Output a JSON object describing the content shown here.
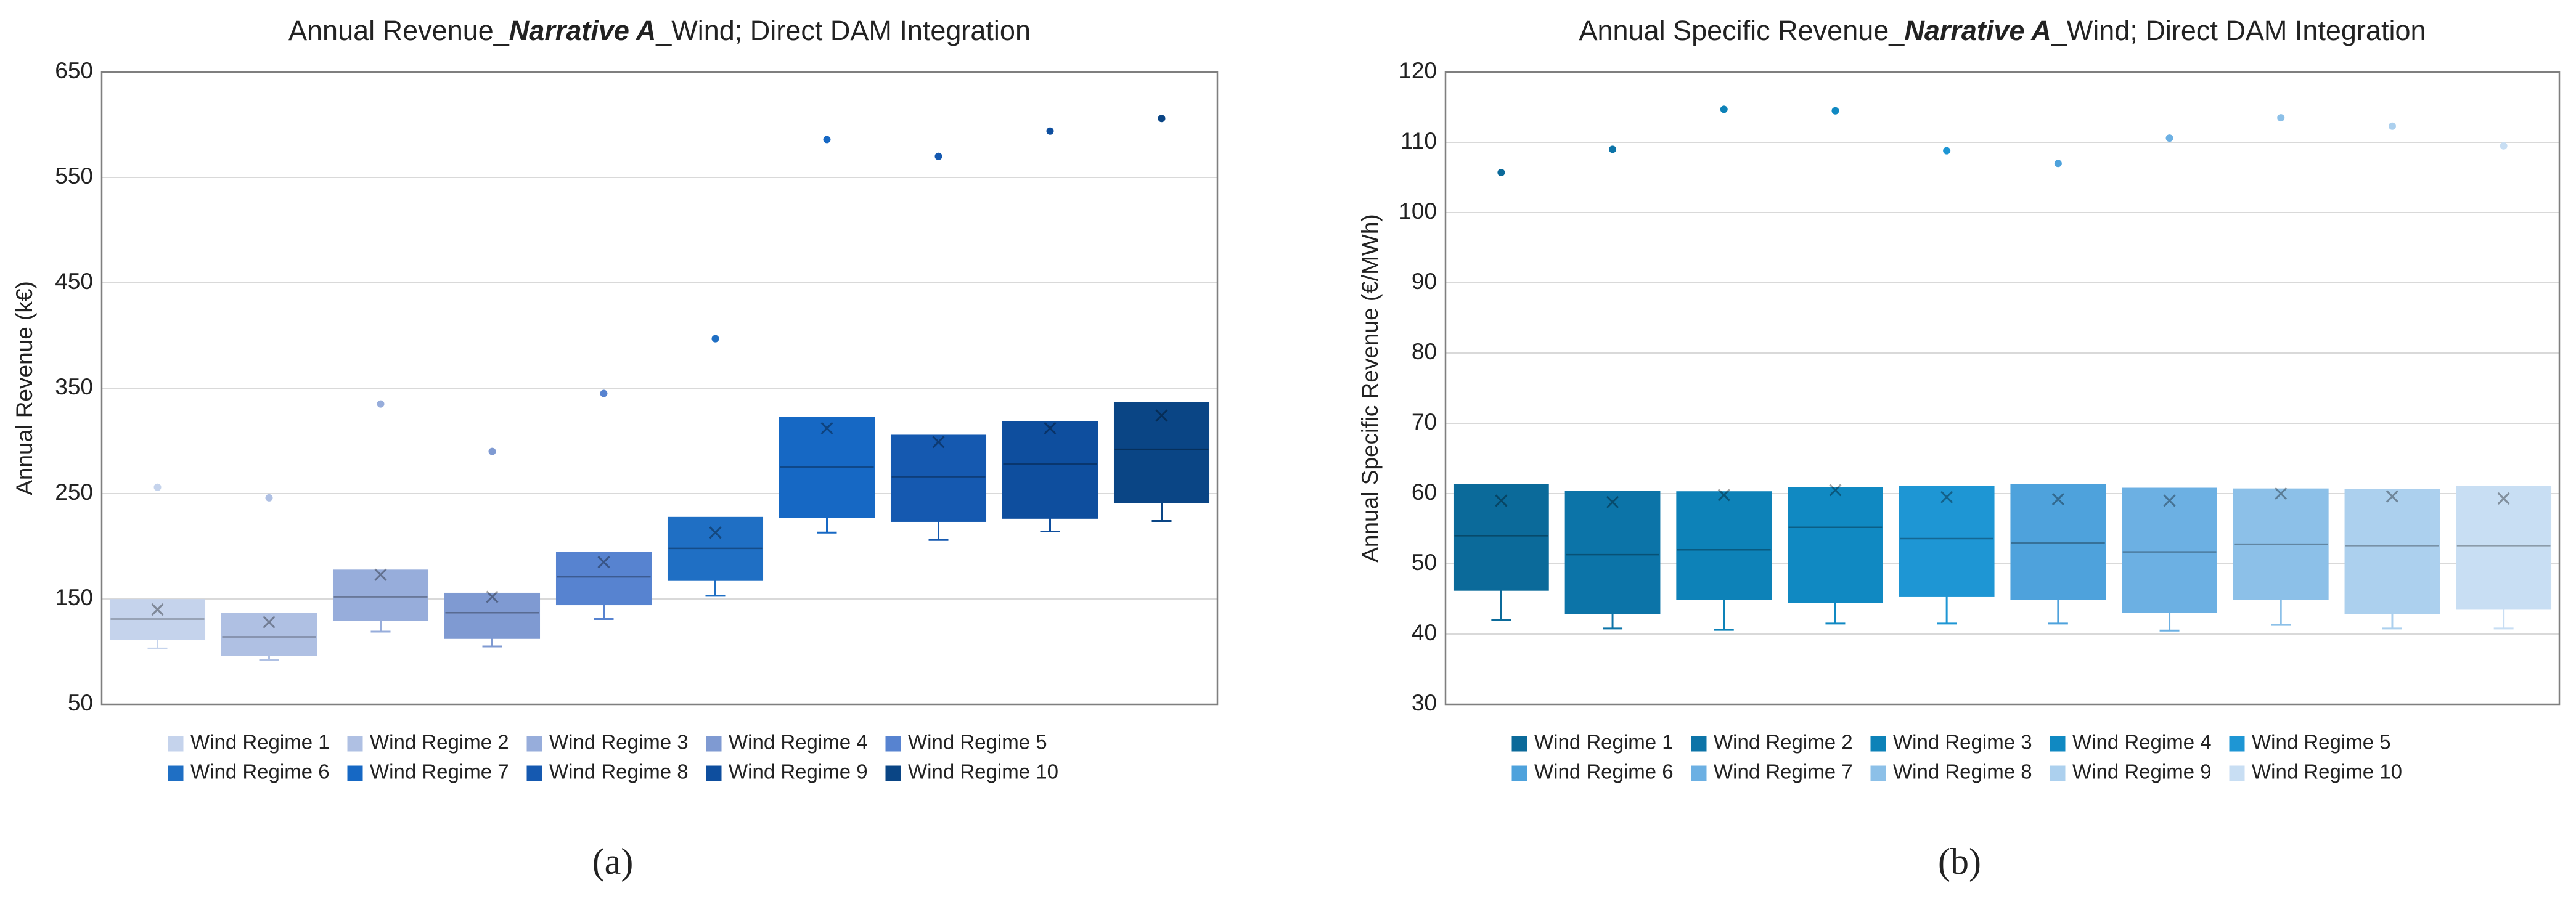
{
  "chart_data": [
    {
      "type": "box",
      "title": [
        "Annual Revenue_",
        "Narrative  A",
        "_Wind; Direct DAM Integration"
      ],
      "y_label": "Annual Revenue (k€)",
      "panel_label": "(a)",
      "ylim": [
        50,
        650
      ],
      "yticks": [
        50,
        150,
        250,
        350,
        450,
        550,
        650
      ],
      "grid": true,
      "series": [
        {
          "name": "Wind Regime 1",
          "color": "#c5d3ec",
          "min": 103,
          "q1": 112,
          "median": 131,
          "q3": 149,
          "max": 149,
          "mean": 140,
          "outliers": [
            256
          ]
        },
        {
          "name": "Wind Regime 2",
          "color": "#afc0e3",
          "min": 92,
          "q1": 97,
          "median": 114,
          "q3": 136,
          "max": 136,
          "mean": 128,
          "outliers": [
            246
          ]
        },
        {
          "name": "Wind Regime 3",
          "color": "#97addb",
          "min": 119,
          "q1": 130,
          "median": 152,
          "q3": 177,
          "max": 177,
          "mean": 173,
          "outliers": [
            335
          ]
        },
        {
          "name": "Wind Regime 4",
          "color": "#7f9ad2",
          "min": 105,
          "q1": 113,
          "median": 137,
          "q3": 155,
          "max": 155,
          "mean": 152,
          "outliers": [
            290
          ]
        },
        {
          "name": "Wind Regime 5",
          "color": "#5783d0",
          "min": 131,
          "q1": 145,
          "median": 171,
          "q3": 194,
          "max": 194,
          "mean": 185,
          "outliers": [
            345
          ]
        },
        {
          "name": "Wind Regime 6",
          "color": "#1f6fc4",
          "min": 153,
          "q1": 168,
          "median": 198,
          "q3": 227,
          "max": 227,
          "mean": 213,
          "outliers": [
            397
          ]
        },
        {
          "name": "Wind Regime 7",
          "color": "#1668c4",
          "min": 213,
          "q1": 228,
          "median": 275,
          "q3": 322,
          "max": 322,
          "mean": 312,
          "outliers": [
            586
          ]
        },
        {
          "name": "Wind Regime 8",
          "color": "#1559b0",
          "min": 206,
          "q1": 224,
          "median": 266,
          "q3": 305,
          "max": 305,
          "mean": 299,
          "outliers": [
            570
          ]
        },
        {
          "name": "Wind Regime 9",
          "color": "#0e4e9e",
          "min": 214,
          "q1": 227,
          "median": 278,
          "q3": 318,
          "max": 318,
          "mean": 312,
          "outliers": [
            594
          ]
        },
        {
          "name": "Wind Regime 10",
          "color": "#0a4585",
          "min": 224,
          "q1": 242,
          "median": 292,
          "q3": 336,
          "max": 336,
          "mean": 324,
          "outliers": [
            606
          ]
        }
      ]
    },
    {
      "type": "box",
      "title": [
        "Annual Specific Revenue_",
        "Narrative  A",
        "_Wind; Direct DAM Integration"
      ],
      "y_label": "Annual Specific Revenue (€/MWh)",
      "panel_label": "(b)",
      "ylim": [
        30,
        120
      ],
      "yticks": [
        30,
        40,
        50,
        60,
        70,
        80,
        90,
        100,
        110,
        120
      ],
      "grid": true,
      "series": [
        {
          "name": "Wind Regime 1",
          "color": "#0b6a9a",
          "min": 42,
          "q1": 46.3,
          "median": 54,
          "q3": 61.2,
          "max": 61.2,
          "mean": 59,
          "outliers": [
            105.7
          ]
        },
        {
          "name": "Wind Regime 2",
          "color": "#0c74a8",
          "min": 40.8,
          "q1": 43,
          "median": 51.3,
          "q3": 60.3,
          "max": 60.3,
          "mean": 58.8,
          "outliers": [
            109
          ]
        },
        {
          "name": "Wind Regime 3",
          "color": "#0d82b8",
          "min": 40.6,
          "q1": 45,
          "median": 52,
          "q3": 60.2,
          "max": 60.2,
          "mean": 59.8,
          "outliers": [
            114.7
          ]
        },
        {
          "name": "Wind Regime 4",
          "color": "#1089c2",
          "min": 41.5,
          "q1": 44.6,
          "median": 55.2,
          "q3": 60.8,
          "max": 60.8,
          "mean": 60.5,
          "outliers": [
            114.5
          ]
        },
        {
          "name": "Wind Regime 5",
          "color": "#1e96d4",
          "min": 41.5,
          "q1": 45.4,
          "median": 53.6,
          "q3": 61,
          "max": 61,
          "mean": 59.5,
          "outliers": [
            108.8
          ]
        },
        {
          "name": "Wind Regime 6",
          "color": "#4ea2dc",
          "min": 41.5,
          "q1": 45,
          "median": 53,
          "q3": 61.2,
          "max": 61.2,
          "mean": 59.2,
          "outliers": [
            107
          ]
        },
        {
          "name": "Wind Regime 7",
          "color": "#6cb0e3",
          "min": 40.5,
          "q1": 43.2,
          "median": 51.7,
          "q3": 60.7,
          "max": 60.7,
          "mean": 59,
          "outliers": [
            110.6
          ]
        },
        {
          "name": "Wind Regime 8",
          "color": "#8cc0e8",
          "min": 41.3,
          "q1": 45,
          "median": 52.8,
          "q3": 60.6,
          "max": 60.6,
          "mean": 60,
          "outliers": [
            113.5
          ]
        },
        {
          "name": "Wind Regime 9",
          "color": "#acd0ee",
          "min": 40.8,
          "q1": 43,
          "median": 52.6,
          "q3": 60.5,
          "max": 60.5,
          "mean": 59.6,
          "outliers": [
            112.3
          ]
        },
        {
          "name": "Wind Regime 10",
          "color": "#c8def3",
          "min": 40.8,
          "q1": 43.6,
          "median": 52.6,
          "q3": 61,
          "max": 61,
          "mean": 59.3,
          "outliers": [
            109.5
          ]
        }
      ]
    }
  ]
}
